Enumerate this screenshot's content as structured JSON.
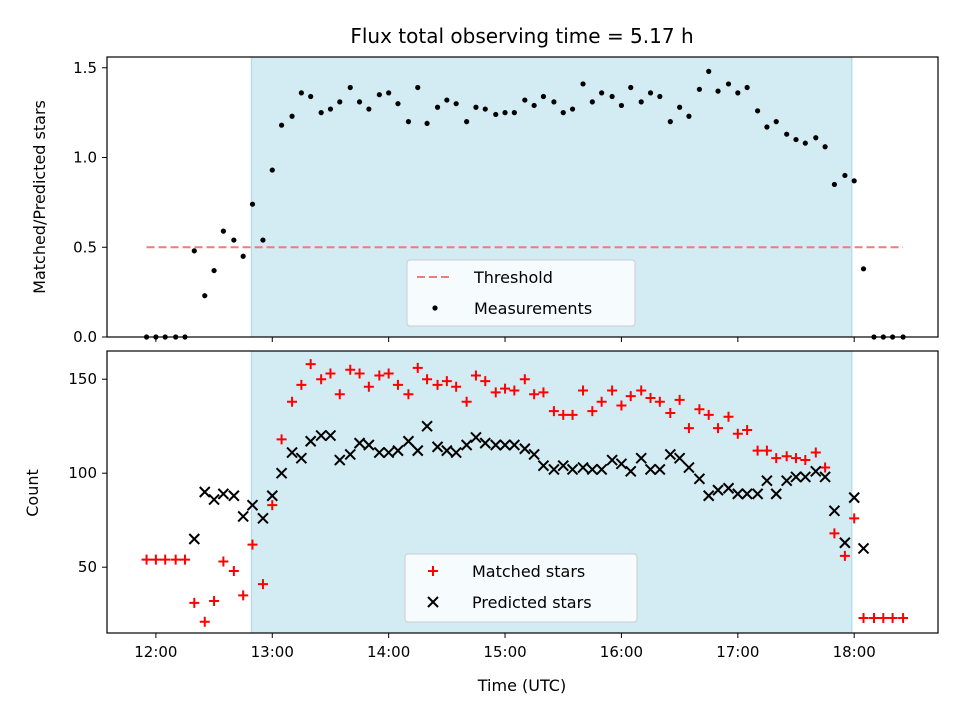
{
  "chart_data": [
    {
      "type": "scatter",
      "title": "Flux total observing time = 5.17 h",
      "ylabel": "Matched/Predicted stars",
      "xlabel": "",
      "xlim": [
        11.58,
        18.72
      ],
      "ylim": [
        0.0,
        1.56
      ],
      "x_ticks": [
        12,
        13,
        14,
        15,
        16,
        17,
        18
      ],
      "y_ticks": [
        0.0,
        0.5,
        1.0,
        1.5
      ],
      "y_tick_labels": [
        "0.0",
        "0.5",
        "1.0",
        "1.5"
      ],
      "shaded_x_range": [
        12.82,
        17.98
      ],
      "shade_color": "#d3ebf2",
      "legend": {
        "placement": "bottom-center",
        "entries": [
          "Threshold",
          "Measurements"
        ]
      },
      "threshold": {
        "name": "Threshold",
        "y": 0.5,
        "x_range": [
          11.92,
          18.42
        ],
        "color": "#f07b7b",
        "style": "dashed"
      },
      "series": [
        {
          "name": "Measurements",
          "color": "#000000",
          "marker": "dot",
          "points": [
            [
              11.92,
              0.0
            ],
            [
              12.0,
              0.0
            ],
            [
              12.08,
              0.0
            ],
            [
              12.17,
              0.0
            ],
            [
              12.25,
              0.0
            ],
            [
              12.33,
              0.48
            ],
            [
              12.42,
              0.23
            ],
            [
              12.5,
              0.37
            ],
            [
              12.58,
              0.59
            ],
            [
              12.67,
              0.54
            ],
            [
              12.75,
              0.45
            ],
            [
              12.83,
              0.74
            ],
            [
              12.92,
              0.54
            ],
            [
              13.0,
              0.93
            ],
            [
              13.08,
              1.18
            ],
            [
              13.17,
              1.23
            ],
            [
              13.25,
              1.36
            ],
            [
              13.33,
              1.34
            ],
            [
              13.42,
              1.25
            ],
            [
              13.5,
              1.27
            ],
            [
              13.58,
              1.31
            ],
            [
              13.67,
              1.39
            ],
            [
              13.75,
              1.31
            ],
            [
              13.83,
              1.27
            ],
            [
              13.92,
              1.35
            ],
            [
              14.0,
              1.36
            ],
            [
              14.08,
              1.3
            ],
            [
              14.17,
              1.2
            ],
            [
              14.25,
              1.39
            ],
            [
              14.33,
              1.19
            ],
            [
              14.42,
              1.28
            ],
            [
              14.5,
              1.32
            ],
            [
              14.58,
              1.3
            ],
            [
              14.67,
              1.2
            ],
            [
              14.75,
              1.28
            ],
            [
              14.83,
              1.27
            ],
            [
              14.92,
              1.24
            ],
            [
              15.0,
              1.25
            ],
            [
              15.08,
              1.25
            ],
            [
              15.17,
              1.32
            ],
            [
              15.25,
              1.29
            ],
            [
              15.33,
              1.34
            ],
            [
              15.42,
              1.31
            ],
            [
              15.5,
              1.25
            ],
            [
              15.58,
              1.27
            ],
            [
              15.67,
              1.41
            ],
            [
              15.75,
              1.31
            ],
            [
              15.83,
              1.36
            ],
            [
              15.92,
              1.34
            ],
            [
              16.0,
              1.29
            ],
            [
              16.08,
              1.39
            ],
            [
              16.17,
              1.31
            ],
            [
              16.25,
              1.36
            ],
            [
              16.33,
              1.34
            ],
            [
              16.42,
              1.2
            ],
            [
              16.5,
              1.28
            ],
            [
              16.58,
              1.23
            ],
            [
              16.67,
              1.38
            ],
            [
              16.75,
              1.48
            ],
            [
              16.83,
              1.37
            ],
            [
              16.92,
              1.41
            ],
            [
              17.0,
              1.36
            ],
            [
              17.08,
              1.39
            ],
            [
              17.17,
              1.26
            ],
            [
              17.25,
              1.17
            ],
            [
              17.33,
              1.2
            ],
            [
              17.42,
              1.13
            ],
            [
              17.5,
              1.1
            ],
            [
              17.58,
              1.08
            ],
            [
              17.67,
              1.11
            ],
            [
              17.75,
              1.06
            ],
            [
              17.83,
              0.85
            ],
            [
              17.92,
              0.9
            ],
            [
              18.0,
              0.87
            ],
            [
              18.08,
              0.38
            ],
            [
              18.17,
              0.0
            ],
            [
              18.25,
              0.0
            ],
            [
              18.33,
              0.0
            ],
            [
              18.42,
              0.0
            ]
          ]
        }
      ]
    },
    {
      "type": "scatter",
      "title": "",
      "ylabel": "Count",
      "xlabel": "Time (UTC)",
      "xlim": [
        11.58,
        18.72
      ],
      "ylim": [
        15,
        165
      ],
      "x_ticks": [
        12,
        13,
        14,
        15,
        16,
        17,
        18
      ],
      "x_tick_labels": [
        "12:00",
        "13:00",
        "14:00",
        "15:00",
        "16:00",
        "17:00",
        "18:00"
      ],
      "y_ticks": [
        50,
        100,
        150
      ],
      "y_tick_labels": [
        "50",
        "100",
        "150"
      ],
      "shaded_x_range": [
        12.82,
        17.98
      ],
      "shade_color": "#d3ebf2",
      "legend": {
        "placement": "bottom-center",
        "entries": [
          "Matched stars",
          "Predicted stars"
        ]
      },
      "series": [
        {
          "name": "Matched stars",
          "color": "#ff0000",
          "marker": "plus",
          "points": [
            [
              11.92,
              54
            ],
            [
              12.0,
              54
            ],
            [
              12.08,
              54
            ],
            [
              12.17,
              54
            ],
            [
              12.25,
              54
            ],
            [
              12.33,
              31
            ],
            [
              12.42,
              21
            ],
            [
              12.5,
              32
            ],
            [
              12.58,
              53
            ],
            [
              12.67,
              48
            ],
            [
              12.75,
              35
            ],
            [
              12.83,
              62
            ],
            [
              12.92,
              41
            ],
            [
              13.0,
              83
            ],
            [
              13.08,
              118
            ],
            [
              13.17,
              138
            ],
            [
              13.25,
              147
            ],
            [
              13.33,
              158
            ],
            [
              13.42,
              150
            ],
            [
              13.5,
              153
            ],
            [
              13.58,
              142
            ],
            [
              13.67,
              155
            ],
            [
              13.75,
              153
            ],
            [
              13.83,
              146
            ],
            [
              13.92,
              152
            ],
            [
              14.0,
              153
            ],
            [
              14.08,
              147
            ],
            [
              14.17,
              142
            ],
            [
              14.25,
              156
            ],
            [
              14.33,
              150
            ],
            [
              14.42,
              147
            ],
            [
              14.5,
              149
            ],
            [
              14.58,
              146
            ],
            [
              14.67,
              138
            ],
            [
              14.75,
              152
            ],
            [
              14.83,
              149
            ],
            [
              14.92,
              143
            ],
            [
              15.0,
              145
            ],
            [
              15.08,
              144
            ],
            [
              15.17,
              150
            ],
            [
              15.25,
              142
            ],
            [
              15.33,
              143
            ],
            [
              15.42,
              133
            ],
            [
              15.5,
              131
            ],
            [
              15.58,
              131
            ],
            [
              15.67,
              144
            ],
            [
              15.75,
              133
            ],
            [
              15.83,
              138
            ],
            [
              15.92,
              144
            ],
            [
              16.0,
              136
            ],
            [
              16.08,
              141
            ],
            [
              16.17,
              144
            ],
            [
              16.25,
              140
            ],
            [
              16.33,
              138
            ],
            [
              16.42,
              132
            ],
            [
              16.5,
              139
            ],
            [
              16.58,
              124
            ],
            [
              16.67,
              134
            ],
            [
              16.75,
              131
            ],
            [
              16.83,
              124
            ],
            [
              16.92,
              130
            ],
            [
              17.0,
              121
            ],
            [
              17.08,
              123
            ],
            [
              17.17,
              112
            ],
            [
              17.25,
              112
            ],
            [
              17.33,
              108
            ],
            [
              17.42,
              109
            ],
            [
              17.5,
              108
            ],
            [
              17.58,
              107
            ],
            [
              17.67,
              111
            ],
            [
              17.75,
              103
            ],
            [
              17.83,
              68
            ],
            [
              17.92,
              56
            ],
            [
              18.0,
              76
            ],
            [
              18.08,
              23
            ],
            [
              18.17,
              23
            ],
            [
              18.25,
              23
            ],
            [
              18.33,
              23
            ],
            [
              18.42,
              23
            ]
          ]
        },
        {
          "name": "Predicted stars",
          "color": "#000000",
          "marker": "x",
          "points": [
            [
              12.33,
              65
            ],
            [
              12.42,
              90
            ],
            [
              12.5,
              86
            ],
            [
              12.58,
              89
            ],
            [
              12.67,
              88
            ],
            [
              12.75,
              77
            ],
            [
              12.83,
              83
            ],
            [
              12.92,
              76
            ],
            [
              13.0,
              88
            ],
            [
              13.08,
              100
            ],
            [
              13.17,
              111
            ],
            [
              13.25,
              108
            ],
            [
              13.33,
              117
            ],
            [
              13.42,
              120
            ],
            [
              13.5,
              120
            ],
            [
              13.58,
              107
            ],
            [
              13.67,
              110
            ],
            [
              13.75,
              116
            ],
            [
              13.83,
              115
            ],
            [
              13.92,
              111
            ],
            [
              14.0,
              111
            ],
            [
              14.08,
              112
            ],
            [
              14.17,
              117
            ],
            [
              14.25,
              112
            ],
            [
              14.33,
              125
            ],
            [
              14.42,
              114
            ],
            [
              14.5,
              112
            ],
            [
              14.58,
              111
            ],
            [
              14.67,
              115
            ],
            [
              14.75,
              119
            ],
            [
              14.83,
              116
            ],
            [
              14.92,
              115
            ],
            [
              15.0,
              115
            ],
            [
              15.08,
              115
            ],
            [
              15.17,
              113
            ],
            [
              15.25,
              110
            ],
            [
              15.33,
              104
            ],
            [
              15.42,
              102
            ],
            [
              15.5,
              104
            ],
            [
              15.58,
              102
            ],
            [
              15.67,
              103
            ],
            [
              15.75,
              102
            ],
            [
              15.83,
              102
            ],
            [
              15.92,
              107
            ],
            [
              16.0,
              105
            ],
            [
              16.08,
              101
            ],
            [
              16.17,
              108
            ],
            [
              16.25,
              102
            ],
            [
              16.33,
              102
            ],
            [
              16.42,
              110
            ],
            [
              16.5,
              108
            ],
            [
              16.58,
              103
            ],
            [
              16.67,
              97
            ],
            [
              16.75,
              88
            ],
            [
              16.83,
              91
            ],
            [
              16.92,
              92
            ],
            [
              17.0,
              89
            ],
            [
              17.08,
              89
            ],
            [
              17.17,
              89
            ],
            [
              17.25,
              96
            ],
            [
              17.33,
              89
            ],
            [
              17.42,
              96
            ],
            [
              17.5,
              98
            ],
            [
              17.58,
              98
            ],
            [
              17.67,
              101
            ],
            [
              17.75,
              98
            ],
            [
              17.83,
              80
            ],
            [
              17.92,
              63
            ],
            [
              18.0,
              87
            ],
            [
              18.08,
              60
            ]
          ]
        }
      ]
    }
  ]
}
